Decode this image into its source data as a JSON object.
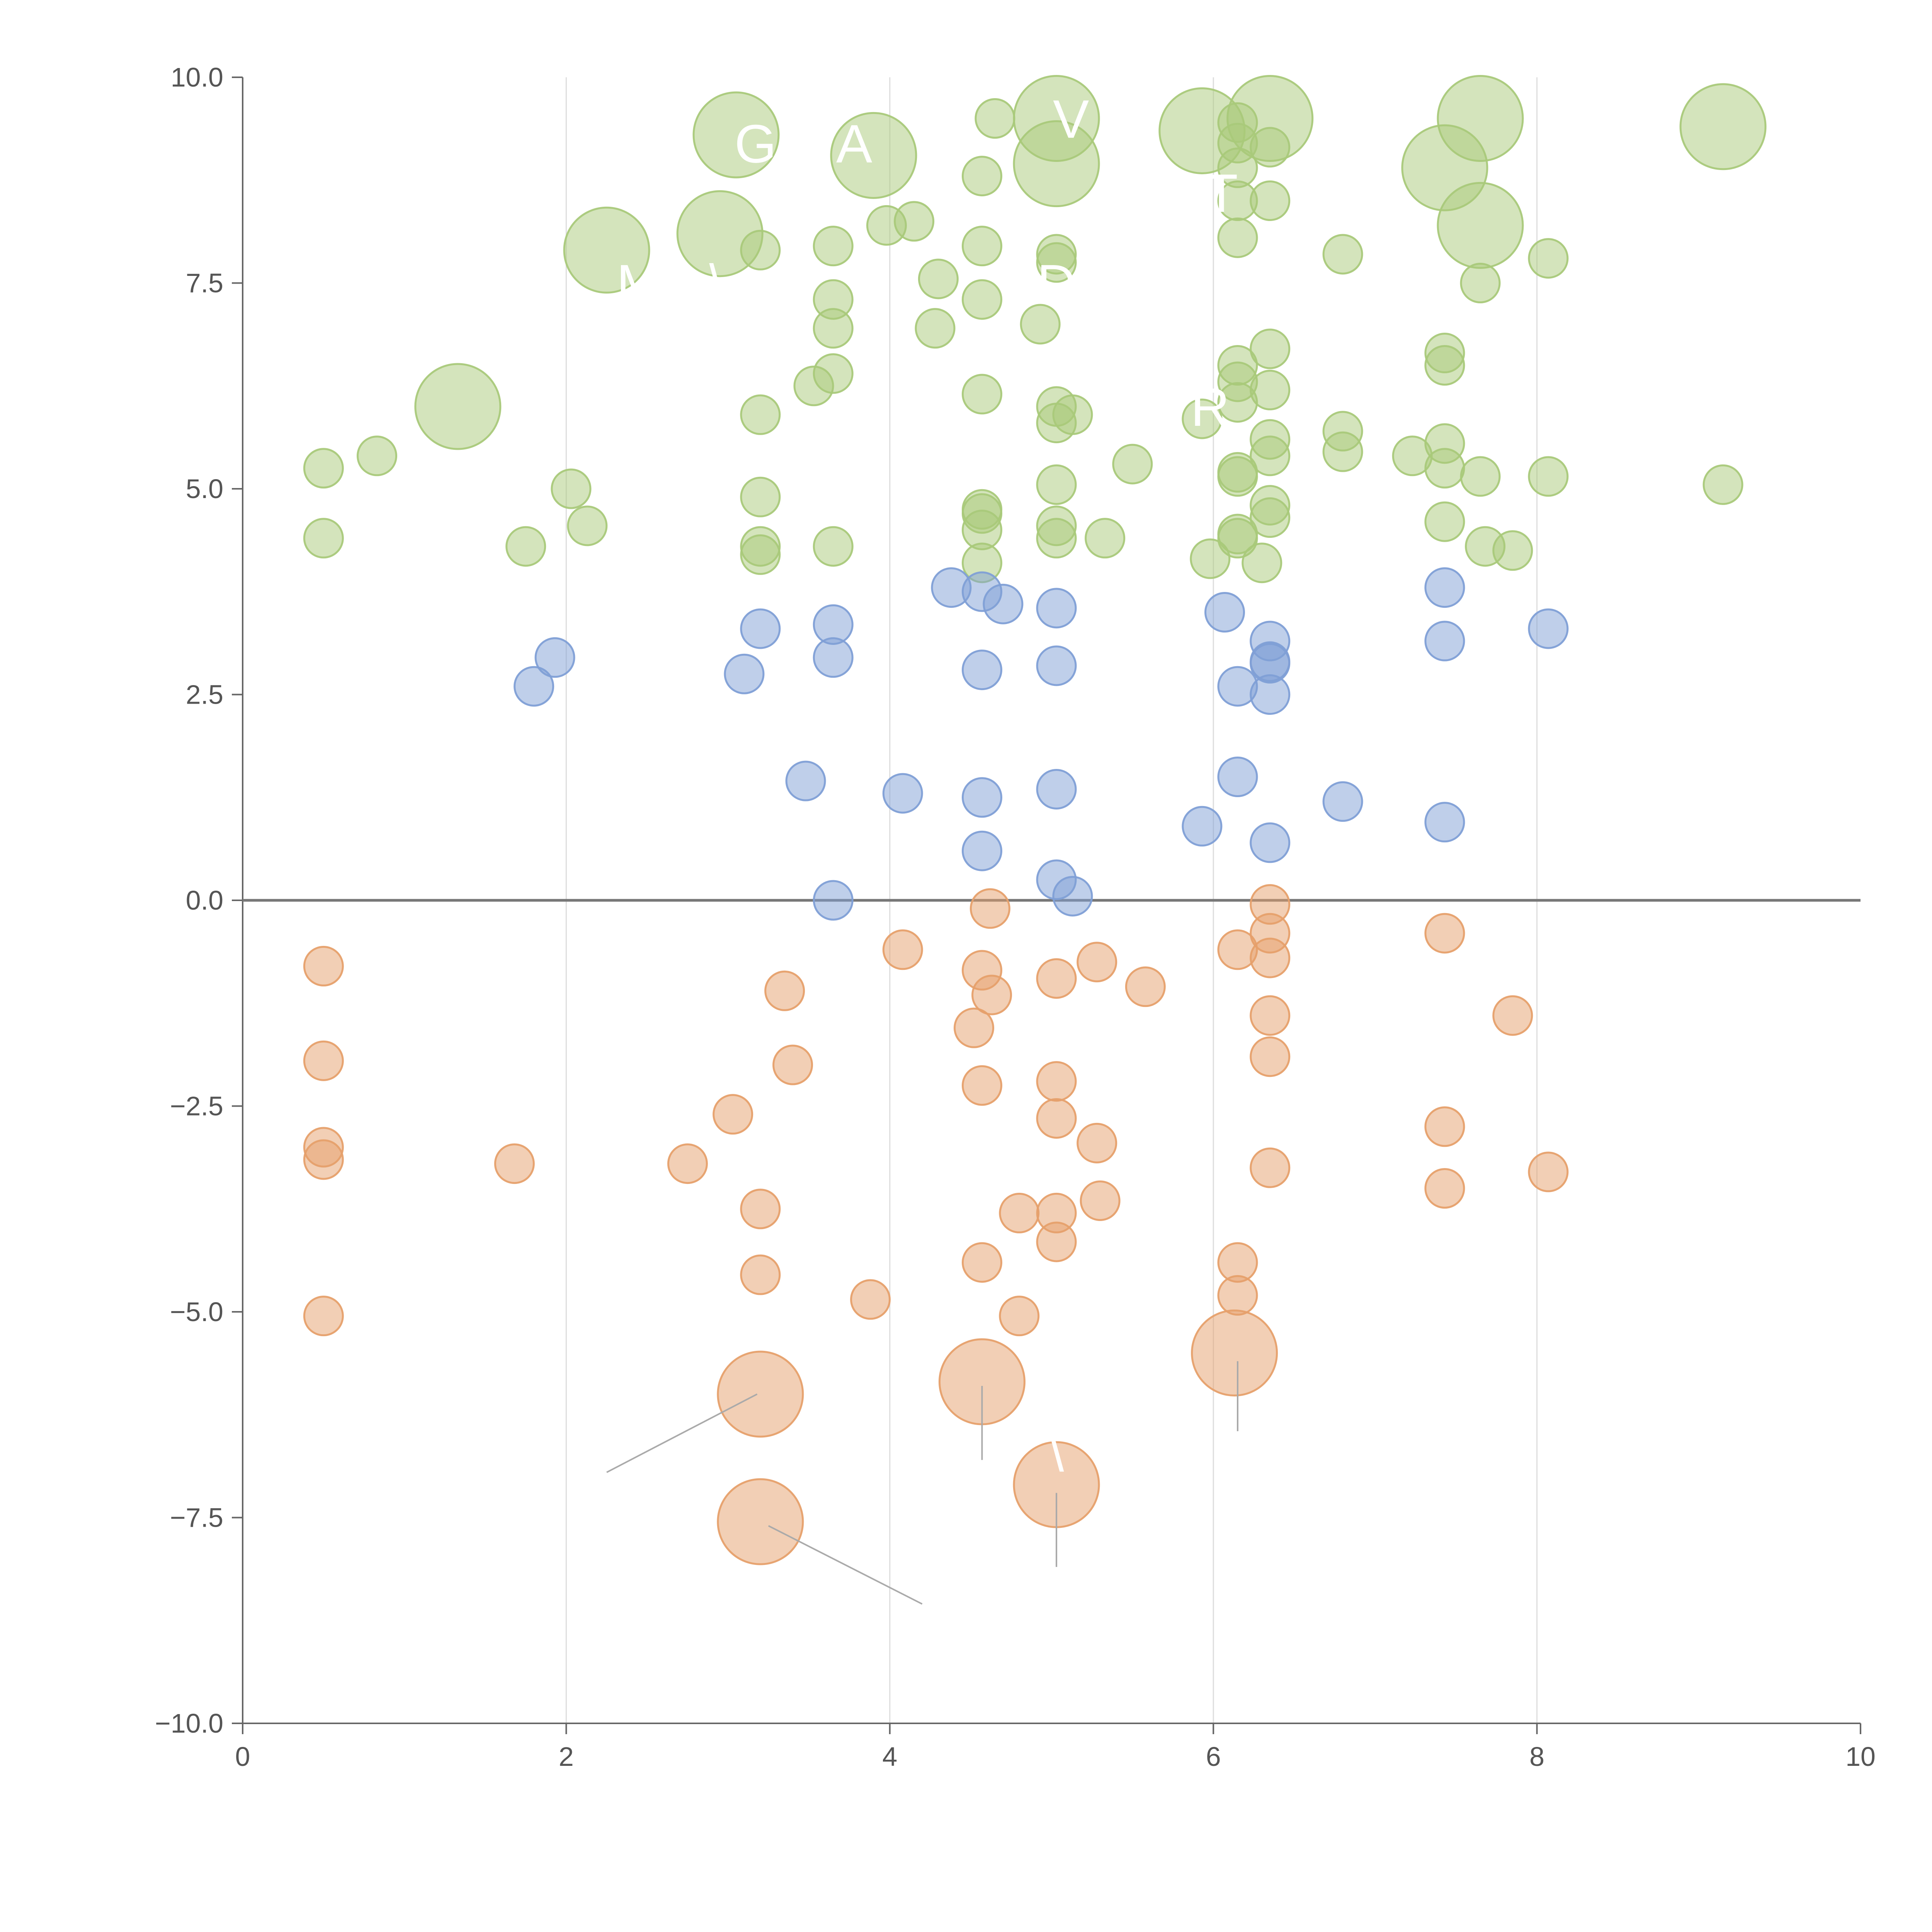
{
  "colors": {
    "positive": "#a9c97a",
    "mid": "#7f9fd6",
    "negative": "#e6a06b",
    "grid": "#dddddd",
    "axis": "#666666"
  },
  "chart_data": {
    "type": "scatter",
    "title": "",
    "xlabel": "",
    "ylabel": "",
    "xlim": [
      0,
      10
    ],
    "ylim": [
      -10,
      10
    ],
    "x_ticks": [
      0,
      2,
      4,
      6,
      8,
      10
    ],
    "y_ticks": [
      -10,
      -7.5,
      -5,
      -2.5,
      0,
      2.5,
      5,
      7.5,
      10
    ],
    "x_tick_labels": [
      "0",
      "2",
      "4",
      "6",
      "8",
      "10"
    ],
    "y_tick_labels": [
      "−10.0",
      "−7.5",
      "−5.0",
      "−2.5",
      "0.0",
      "2.5",
      "5.0",
      "7.5",
      "10.0"
    ],
    "grid": {
      "vertical": true,
      "horizontal": false
    },
    "zero_line": true,
    "legend": "none",
    "point_groups": [
      {
        "group": "positive-high",
        "color_key": "positive",
        "points": [
          {
            "x": 3.05,
            "y": 9.3,
            "size": "large"
          },
          {
            "x": 3.9,
            "y": 9.05,
            "size": "large"
          },
          {
            "x": 4.65,
            "y": 9.5,
            "size": "small"
          },
          {
            "x": 5.03,
            "y": 9.5,
            "size": "large"
          },
          {
            "x": 5.03,
            "y": 8.95,
            "size": "large"
          },
          {
            "x": 5.93,
            "y": 9.35,
            "size": "large"
          },
          {
            "x": 6.15,
            "y": 9.45,
            "size": "small"
          },
          {
            "x": 6.35,
            "y": 9.5,
            "size": "large"
          },
          {
            "x": 7.65,
            "y": 9.5,
            "size": "large"
          },
          {
            "x": 9.15,
            "y": 9.4,
            "size": "large"
          },
          {
            "x": 6.15,
            "y": 9.2,
            "size": "small"
          },
          {
            "x": 6.35,
            "y": 9.15,
            "size": "small"
          },
          {
            "x": 4.57,
            "y": 8.8,
            "size": "small"
          },
          {
            "x": 6.15,
            "y": 8.9,
            "size": "small"
          },
          {
            "x": 7.43,
            "y": 8.9,
            "size": "large"
          },
          {
            "x": 6.15,
            "y": 8.5,
            "size": "small"
          },
          {
            "x": 6.35,
            "y": 8.5,
            "size": "small"
          },
          {
            "x": 4.15,
            "y": 8.25,
            "size": "small"
          },
          {
            "x": 3.98,
            "y": 8.2,
            "size": "small"
          },
          {
            "x": 2.95,
            "y": 8.1,
            "size": "large"
          },
          {
            "x": 7.65,
            "y": 8.2,
            "size": "large"
          },
          {
            "x": 6.15,
            "y": 8.05,
            "size": "small"
          },
          {
            "x": 2.25,
            "y": 7.9,
            "size": "large"
          },
          {
            "x": 3.2,
            "y": 7.9,
            "size": "small"
          },
          {
            "x": 3.65,
            "y": 7.95,
            "size": "small"
          },
          {
            "x": 4.57,
            "y": 7.95,
            "size": "small"
          },
          {
            "x": 5.03,
            "y": 7.85,
            "size": "small"
          },
          {
            "x": 5.03,
            "y": 7.75,
            "size": "small"
          },
          {
            "x": 6.8,
            "y": 7.85,
            "size": "small"
          },
          {
            "x": 8.07,
            "y": 7.8,
            "size": "small"
          },
          {
            "x": 4.3,
            "y": 7.55,
            "size": "small"
          },
          {
            "x": 7.65,
            "y": 7.5,
            "size": "small"
          },
          {
            "x": 3.65,
            "y": 7.3,
            "size": "small"
          },
          {
            "x": 4.57,
            "y": 7.3,
            "size": "small"
          },
          {
            "x": 4.28,
            "y": 6.95,
            "size": "small"
          },
          {
            "x": 3.65,
            "y": 6.95,
            "size": "small"
          },
          {
            "x": 4.93,
            "y": 7.0,
            "size": "small"
          },
          {
            "x": 6.35,
            "y": 6.7,
            "size": "small"
          },
          {
            "x": 7.43,
            "y": 6.65,
            "size": "small"
          },
          {
            "x": 7.43,
            "y": 6.5,
            "size": "small"
          },
          {
            "x": 6.15,
            "y": 6.5,
            "size": "small"
          },
          {
            "x": 3.65,
            "y": 6.4,
            "size": "small"
          },
          {
            "x": 3.53,
            "y": 6.25,
            "size": "small"
          },
          {
            "x": 6.15,
            "y": 6.3,
            "size": "small"
          },
          {
            "x": 6.35,
            "y": 6.2,
            "size": "small"
          },
          {
            "x": 4.57,
            "y": 6.15,
            "size": "small"
          },
          {
            "x": 1.33,
            "y": 6.0,
            "size": "large"
          },
          {
            "x": 6.15,
            "y": 6.05,
            "size": "small"
          },
          {
            "x": 5.03,
            "y": 6.0,
            "size": "small"
          },
          {
            "x": 3.2,
            "y": 5.9,
            "size": "small"
          },
          {
            "x": 5.13,
            "y": 5.9,
            "size": "small"
          },
          {
            "x": 5.93,
            "y": 5.85,
            "size": "small"
          },
          {
            "x": 5.03,
            "y": 5.8,
            "size": "small"
          },
          {
            "x": 6.8,
            "y": 5.7,
            "size": "small"
          },
          {
            "x": 6.35,
            "y": 5.6,
            "size": "small"
          },
          {
            "x": 7.43,
            "y": 5.55,
            "size": "small"
          },
          {
            "x": 6.8,
            "y": 5.45,
            "size": "small"
          },
          {
            "x": 6.35,
            "y": 5.4,
            "size": "small"
          },
          {
            "x": 7.23,
            "y": 5.4,
            "size": "small"
          },
          {
            "x": 0.83,
            "y": 5.4,
            "size": "small"
          },
          {
            "x": 5.5,
            "y": 5.3,
            "size": "small"
          },
          {
            "x": 0.5,
            "y": 5.25,
            "size": "small"
          },
          {
            "x": 7.43,
            "y": 5.25,
            "size": "small"
          },
          {
            "x": 6.15,
            "y": 5.2,
            "size": "small"
          },
          {
            "x": 6.15,
            "y": 5.15,
            "size": "small"
          },
          {
            "x": 7.65,
            "y": 5.15,
            "size": "small"
          },
          {
            "x": 8.07,
            "y": 5.15,
            "size": "small"
          },
          {
            "x": 5.03,
            "y": 5.05,
            "size": "small"
          },
          {
            "x": 9.15,
            "y": 5.05,
            "size": "small"
          },
          {
            "x": 2.03,
            "y": 5.0,
            "size": "small"
          }
        ]
      },
      {
        "group": "positive-low",
        "color_key": "positive",
        "points": [
          {
            "x": 3.2,
            "y": 4.9,
            "size": "small"
          },
          {
            "x": 6.35,
            "y": 4.8,
            "size": "small"
          },
          {
            "x": 4.57,
            "y": 4.75,
            "size": "small"
          },
          {
            "x": 4.57,
            "y": 4.7,
            "size": "small"
          },
          {
            "x": 6.35,
            "y": 4.65,
            "size": "small"
          },
          {
            "x": 7.43,
            "y": 4.6,
            "size": "small"
          },
          {
            "x": 2.13,
            "y": 4.55,
            "size": "small"
          },
          {
            "x": 5.03,
            "y": 4.55,
            "size": "small"
          },
          {
            "x": 4.57,
            "y": 4.5,
            "size": "small"
          },
          {
            "x": 6.15,
            "y": 4.45,
            "size": "small"
          },
          {
            "x": 0.5,
            "y": 4.4,
            "size": "small"
          },
          {
            "x": 5.03,
            "y": 4.4,
            "size": "small"
          },
          {
            "x": 5.33,
            "y": 4.4,
            "size": "small"
          },
          {
            "x": 6.15,
            "y": 4.4,
            "size": "small"
          },
          {
            "x": 3.2,
            "y": 4.3,
            "size": "small"
          },
          {
            "x": 3.65,
            "y": 4.3,
            "size": "small"
          },
          {
            "x": 1.75,
            "y": 4.3,
            "size": "small"
          },
          {
            "x": 7.68,
            "y": 4.3,
            "size": "small"
          },
          {
            "x": 7.85,
            "y": 4.25,
            "size": "small"
          },
          {
            "x": 3.2,
            "y": 4.2,
            "size": "small"
          },
          {
            "x": 5.98,
            "y": 4.15,
            "size": "small"
          },
          {
            "x": 6.3,
            "y": 4.1,
            "size": "small"
          },
          {
            "x": 4.57,
            "y": 4.1,
            "size": "small"
          }
        ]
      },
      {
        "group": "mid",
        "color_key": "mid",
        "points": [
          {
            "x": 4.38,
            "y": 3.8,
            "size": "small"
          },
          {
            "x": 4.57,
            "y": 3.75,
            "size": "small"
          },
          {
            "x": 7.43,
            "y": 3.8,
            "size": "small"
          },
          {
            "x": 4.7,
            "y": 3.6,
            "size": "small"
          },
          {
            "x": 5.03,
            "y": 3.55,
            "size": "small"
          },
          {
            "x": 6.07,
            "y": 3.5,
            "size": "small"
          },
          {
            "x": 3.65,
            "y": 3.35,
            "size": "small"
          },
          {
            "x": 3.2,
            "y": 3.3,
            "size": "small"
          },
          {
            "x": 8.07,
            "y": 3.3,
            "size": "small"
          },
          {
            "x": 6.35,
            "y": 3.15,
            "size": "small"
          },
          {
            "x": 7.43,
            "y": 3.15,
            "size": "small"
          },
          {
            "x": 1.93,
            "y": 2.95,
            "size": "small"
          },
          {
            "x": 3.65,
            "y": 2.95,
            "size": "small"
          },
          {
            "x": 6.35,
            "y": 2.9,
            "size": "small"
          },
          {
            "x": 6.35,
            "y": 2.88,
            "size": "small"
          },
          {
            "x": 5.03,
            "y": 2.85,
            "size": "small"
          },
          {
            "x": 4.57,
            "y": 2.8,
            "size": "small"
          },
          {
            "x": 3.1,
            "y": 2.75,
            "size": "small"
          },
          {
            "x": 1.8,
            "y": 2.6,
            "size": "small"
          },
          {
            "x": 6.15,
            "y": 2.6,
            "size": "small"
          },
          {
            "x": 6.35,
            "y": 2.5,
            "size": "small"
          },
          {
            "x": 6.15,
            "y": 1.5,
            "size": "small"
          },
          {
            "x": 3.48,
            "y": 1.45,
            "size": "small"
          },
          {
            "x": 5.03,
            "y": 1.35,
            "size": "small"
          },
          {
            "x": 4.08,
            "y": 1.3,
            "size": "small"
          },
          {
            "x": 4.57,
            "y": 1.25,
            "size": "small"
          },
          {
            "x": 6.8,
            "y": 1.2,
            "size": "small"
          },
          {
            "x": 7.43,
            "y": 0.95,
            "size": "small"
          },
          {
            "x": 5.93,
            "y": 0.9,
            "size": "small"
          },
          {
            "x": 6.35,
            "y": 0.7,
            "size": "small"
          },
          {
            "x": 4.57,
            "y": 0.6,
            "size": "small"
          },
          {
            "x": 5.03,
            "y": 0.25,
            "size": "small"
          },
          {
            "x": 5.13,
            "y": 0.05,
            "size": "small"
          },
          {
            "x": 3.65,
            "y": 0.0,
            "size": "small"
          }
        ]
      },
      {
        "group": "negative",
        "color_key": "negative",
        "points": [
          {
            "x": 6.35,
            "y": -0.05,
            "size": "small"
          },
          {
            "x": 4.62,
            "y": -0.1,
            "size": "small"
          },
          {
            "x": 6.35,
            "y": -0.4,
            "size": "small"
          },
          {
            "x": 7.43,
            "y": -0.4,
            "size": "small"
          },
          {
            "x": 4.08,
            "y": -0.6,
            "size": "small"
          },
          {
            "x": 6.15,
            "y": -0.6,
            "size": "small"
          },
          {
            "x": 6.35,
            "y": -0.7,
            "size": "small"
          },
          {
            "x": 5.28,
            "y": -0.75,
            "size": "small"
          },
          {
            "x": 0.5,
            "y": -0.8,
            "size": "small"
          },
          {
            "x": 4.57,
            "y": -0.85,
            "size": "small"
          },
          {
            "x": 5.03,
            "y": -0.95,
            "size": "small"
          },
          {
            "x": 5.58,
            "y": -1.05,
            "size": "small"
          },
          {
            "x": 3.35,
            "y": -1.1,
            "size": "small"
          },
          {
            "x": 4.63,
            "y": -1.15,
            "size": "small"
          },
          {
            "x": 6.35,
            "y": -1.4,
            "size": "small"
          },
          {
            "x": 7.85,
            "y": -1.4,
            "size": "small"
          },
          {
            "x": 4.52,
            "y": -1.55,
            "size": "small"
          },
          {
            "x": 6.35,
            "y": -1.9,
            "size": "small"
          },
          {
            "x": 0.5,
            "y": -1.95,
            "size": "small"
          },
          {
            "x": 3.4,
            "y": -2.0,
            "size": "small"
          },
          {
            "x": 5.03,
            "y": -2.2,
            "size": "small"
          },
          {
            "x": 4.57,
            "y": -2.25,
            "size": "small"
          },
          {
            "x": 3.03,
            "y": -2.6,
            "size": "small"
          },
          {
            "x": 5.03,
            "y": -2.65,
            "size": "small"
          },
          {
            "x": 7.43,
            "y": -2.75,
            "size": "small"
          },
          {
            "x": 5.28,
            "y": -2.95,
            "size": "small"
          },
          {
            "x": 0.5,
            "y": -3.0,
            "size": "small"
          },
          {
            "x": 0.5,
            "y": -3.15,
            "size": "small"
          },
          {
            "x": 1.68,
            "y": -3.2,
            "size": "small"
          },
          {
            "x": 2.75,
            "y": -3.2,
            "size": "small"
          },
          {
            "x": 6.35,
            "y": -3.25,
            "size": "small"
          },
          {
            "x": 8.07,
            "y": -3.3,
            "size": "small"
          },
          {
            "x": 7.43,
            "y": -3.5,
            "size": "small"
          },
          {
            "x": 5.3,
            "y": -3.65,
            "size": "small"
          },
          {
            "x": 3.2,
            "y": -3.75,
            "size": "small"
          },
          {
            "x": 4.8,
            "y": -3.8,
            "size": "small"
          },
          {
            "x": 5.03,
            "y": -3.8,
            "size": "small"
          },
          {
            "x": 5.03,
            "y": -4.15,
            "size": "small"
          },
          {
            "x": 4.57,
            "y": -4.4,
            "size": "small"
          },
          {
            "x": 6.15,
            "y": -4.4,
            "size": "small"
          },
          {
            "x": 3.2,
            "y": -4.55,
            "size": "small"
          },
          {
            "x": 6.15,
            "y": -4.8,
            "size": "small"
          },
          {
            "x": 3.88,
            "y": -4.85,
            "size": "small"
          },
          {
            "x": 0.5,
            "y": -5.05,
            "size": "small"
          },
          {
            "x": 4.8,
            "y": -5.05,
            "size": "small"
          },
          {
            "x": 6.13,
            "y": -5.5,
            "size": "large"
          },
          {
            "x": 4.57,
            "y": -5.85,
            "size": "large"
          },
          {
            "x": 3.2,
            "y": -6.0,
            "size": "large"
          },
          {
            "x": 5.03,
            "y": -7.1,
            "size": "large"
          },
          {
            "x": 3.2,
            "y": -7.55,
            "size": "large"
          }
        ]
      }
    ],
    "text_labels": [
      {
        "text": "G",
        "x": 3.17,
        "y": 9.2
      },
      {
        "text": "A",
        "x": 3.78,
        "y": 9.2
      },
      {
        "text": "V",
        "x": 5.12,
        "y": 9.5
      },
      {
        "text": "T",
        "x": 6.05,
        "y": 8.6
      },
      {
        "text": "R",
        "x": 5.98,
        "y": 6.0
      },
      {
        "text": "D",
        "x": 5.03,
        "y": 7.5
      },
      {
        "text": "M",
        "x": 2.45,
        "y": 7.5
      },
      {
        "text": "\\",
        "x": 2.93,
        "y": 7.5
      },
      {
        "text": "\\",
        "x": 5.03,
        "y": -6.7
      }
    ],
    "leader_lines": [
      {
        "x1": 2.25,
        "y1": -6.95,
        "x2": 3.18,
        "y2": -6.0
      },
      {
        "x1": 4.57,
        "y1": -6.8,
        "x2": 4.57,
        "y2": -5.9
      },
      {
        "x1": 6.15,
        "y1": -6.45,
        "x2": 6.15,
        "y2": -5.6
      },
      {
        "x1": 5.03,
        "y1": -8.1,
        "x2": 5.03,
        "y2": -7.2
      },
      {
        "x1": 3.25,
        "y1": -7.6,
        "x2": 4.2,
        "y2": -8.55
      }
    ]
  }
}
